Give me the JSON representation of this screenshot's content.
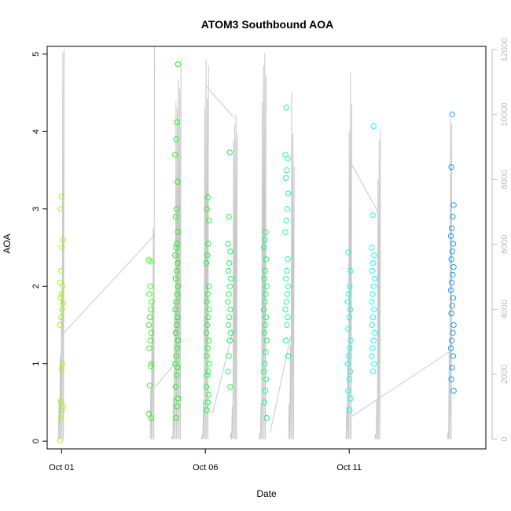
{
  "chart_data": {
    "type": "scatter",
    "title": "ATOM3 Southbound AOA",
    "xlabel": "Date",
    "ylabel": "AOA",
    "x_axis": {
      "type": "date",
      "range": [
        "2024-09-30T12:00",
        "2024-10-15T18:00"
      ],
      "ticks": [
        "2024-10-01",
        "2024-10-06",
        "2024-10-11"
      ],
      "tick_labels": [
        "Oct 01",
        "Oct 06",
        "Oct 11"
      ]
    },
    "y_axis": {
      "range": [
        -0.1,
        5.1
      ],
      "ticks": [
        0,
        1,
        2,
        3,
        4,
        5
      ]
    },
    "y2_axis": {
      "range": [
        -300,
        12100
      ],
      "ticks": [
        0,
        2000,
        4000,
        6000,
        8000,
        10000,
        12000
      ],
      "color": "#bdbdbd"
    },
    "grid": false,
    "series": [
      {
        "kind": "points",
        "marker": "open-circle",
        "color_scale": "rainbow green→blue by date",
        "points": [
          [
            "2024-10-01T00:00",
            0.01
          ],
          [
            "2024-10-01T00:00",
            0.3
          ],
          [
            "2024-10-01T00:00",
            0.4
          ],
          [
            "2024-10-01T00:00",
            0.45
          ],
          [
            "2024-10-01T00:00",
            0.52
          ],
          [
            "2024-10-01T00:00",
            0.93
          ],
          [
            "2024-10-01T00:00",
            1.0
          ],
          [
            "2024-10-01T00:00",
            1.5
          ],
          [
            "2024-10-01T00:00",
            1.6
          ],
          [
            "2024-10-01T00:00",
            1.7
          ],
          [
            "2024-10-01T00:00",
            1.78
          ],
          [
            "2024-10-01T00:00",
            1.85
          ],
          [
            "2024-10-01T00:00",
            1.9
          ],
          [
            "2024-10-01T00:00",
            2.0
          ],
          [
            "2024-10-01T00:00",
            2.05
          ],
          [
            "2024-10-01T00:00",
            2.2
          ],
          [
            "2024-10-01T00:00",
            2.5
          ],
          [
            "2024-10-01T00:00",
            2.6
          ],
          [
            "2024-10-01T00:00",
            3.0
          ],
          [
            "2024-10-01T00:00",
            3.16
          ],
          [
            "2024-10-04T02:00",
            0.3
          ],
          [
            "2024-10-04T02:00",
            0.35
          ],
          [
            "2024-10-04T02:00",
            0.72
          ],
          [
            "2024-10-04T02:00",
            0.97
          ],
          [
            "2024-10-04T02:00",
            1.0
          ],
          [
            "2024-10-04T02:00",
            1.2
          ],
          [
            "2024-10-04T02:00",
            1.3
          ],
          [
            "2024-10-04T02:00",
            1.4
          ],
          [
            "2024-10-04T02:00",
            1.5
          ],
          [
            "2024-10-04T02:00",
            1.6
          ],
          [
            "2024-10-04T02:00",
            1.7
          ],
          [
            "2024-10-04T02:00",
            1.8
          ],
          [
            "2024-10-04T02:00",
            1.9
          ],
          [
            "2024-10-04T02:00",
            2.0
          ],
          [
            "2024-10-04T02:00",
            2.32
          ],
          [
            "2024-10-04T02:00",
            2.34
          ],
          [
            "2024-10-05T00:00",
            0.3
          ],
          [
            "2024-10-05T00:00",
            0.45
          ],
          [
            "2024-10-05T00:00",
            0.55
          ],
          [
            "2024-10-05T00:00",
            0.7
          ],
          [
            "2024-10-05T00:00",
            0.85
          ],
          [
            "2024-10-05T00:00",
            0.95
          ],
          [
            "2024-10-05T00:00",
            1.0
          ],
          [
            "2024-10-05T00:00",
            1.1
          ],
          [
            "2024-10-05T00:00",
            1.2
          ],
          [
            "2024-10-05T00:00",
            1.3
          ],
          [
            "2024-10-05T00:00",
            1.4
          ],
          [
            "2024-10-05T00:00",
            1.5
          ],
          [
            "2024-10-05T00:00",
            1.6
          ],
          [
            "2024-10-05T00:00",
            1.7
          ],
          [
            "2024-10-05T00:00",
            1.8
          ],
          [
            "2024-10-05T00:00",
            1.9
          ],
          [
            "2024-10-05T00:00",
            2.0
          ],
          [
            "2024-10-05T00:00",
            2.1
          ],
          [
            "2024-10-05T00:00",
            2.2
          ],
          [
            "2024-10-05T00:00",
            2.3
          ],
          [
            "2024-10-05T00:00",
            2.4
          ],
          [
            "2024-10-05T00:00",
            2.5
          ],
          [
            "2024-10-05T00:00",
            2.55
          ],
          [
            "2024-10-05T00:00",
            2.7
          ],
          [
            "2024-10-05T00:00",
            2.9
          ],
          [
            "2024-10-05T00:00",
            3.0
          ],
          [
            "2024-10-05T00:00",
            3.35
          ],
          [
            "2024-10-05T00:00",
            3.7
          ],
          [
            "2024-10-05T00:00",
            3.9
          ],
          [
            "2024-10-05T00:00",
            4.12
          ],
          [
            "2024-10-05T00:00",
            4.87
          ],
          [
            "2024-10-06T02:00",
            0.4
          ],
          [
            "2024-10-06T02:00",
            0.5
          ],
          [
            "2024-10-06T02:00",
            0.6
          ],
          [
            "2024-10-06T02:00",
            0.7
          ],
          [
            "2024-10-06T02:00",
            0.85
          ],
          [
            "2024-10-06T02:00",
            0.9
          ],
          [
            "2024-10-06T02:00",
            1.0
          ],
          [
            "2024-10-06T02:00",
            1.1
          ],
          [
            "2024-10-06T02:00",
            1.2
          ],
          [
            "2024-10-06T02:00",
            1.3
          ],
          [
            "2024-10-06T02:00",
            1.4
          ],
          [
            "2024-10-06T02:00",
            1.5
          ],
          [
            "2024-10-06T02:00",
            1.6
          ],
          [
            "2024-10-06T02:00",
            1.7
          ],
          [
            "2024-10-06T02:00",
            1.8
          ],
          [
            "2024-10-06T02:00",
            1.9
          ],
          [
            "2024-10-06T02:00",
            2.0
          ],
          [
            "2024-10-06T02:00",
            2.3
          ],
          [
            "2024-10-06T02:00",
            2.4
          ],
          [
            "2024-10-06T02:00",
            2.55
          ],
          [
            "2024-10-06T02:00",
            2.85
          ],
          [
            "2024-10-06T02:00",
            3.0
          ],
          [
            "2024-10-06T02:00",
            3.15
          ],
          [
            "2024-10-06T20:00",
            0.7
          ],
          [
            "2024-10-06T20:00",
            0.9
          ],
          [
            "2024-10-06T20:00",
            1.1
          ],
          [
            "2024-10-06T20:00",
            1.3
          ],
          [
            "2024-10-06T20:00",
            1.4
          ],
          [
            "2024-10-06T20:00",
            1.5
          ],
          [
            "2024-10-06T20:00",
            1.6
          ],
          [
            "2024-10-06T20:00",
            1.7
          ],
          [
            "2024-10-06T20:00",
            1.8
          ],
          [
            "2024-10-06T20:00",
            1.9
          ],
          [
            "2024-10-06T20:00",
            2.0
          ],
          [
            "2024-10-06T20:00",
            2.1
          ],
          [
            "2024-10-06T20:00",
            2.2
          ],
          [
            "2024-10-06T20:00",
            2.3
          ],
          [
            "2024-10-06T20:00",
            2.45
          ],
          [
            "2024-10-06T20:00",
            2.55
          ],
          [
            "2024-10-06T20:00",
            2.9
          ],
          [
            "2024-10-06T20:00",
            3.73
          ],
          [
            "2024-10-08T02:00",
            0.3
          ],
          [
            "2024-10-08T02:00",
            0.5
          ],
          [
            "2024-10-08T02:00",
            0.65
          ],
          [
            "2024-10-08T02:00",
            0.8
          ],
          [
            "2024-10-08T02:00",
            0.9
          ],
          [
            "2024-10-08T02:00",
            1.0
          ],
          [
            "2024-10-08T02:00",
            1.15
          ],
          [
            "2024-10-08T02:00",
            1.3
          ],
          [
            "2024-10-08T02:00",
            1.4
          ],
          [
            "2024-10-08T02:00",
            1.5
          ],
          [
            "2024-10-08T02:00",
            1.6
          ],
          [
            "2024-10-08T02:00",
            1.7
          ],
          [
            "2024-10-08T02:00",
            1.8
          ],
          [
            "2024-10-08T02:00",
            1.9
          ],
          [
            "2024-10-08T02:00",
            2.0
          ],
          [
            "2024-10-08T02:00",
            2.1
          ],
          [
            "2024-10-08T02:00",
            2.2
          ],
          [
            "2024-10-08T02:00",
            2.35
          ],
          [
            "2024-10-08T02:00",
            2.5
          ],
          [
            "2024-10-08T02:00",
            2.6
          ],
          [
            "2024-10-08T02:00",
            2.7
          ],
          [
            "2024-10-08T20:00",
            1.1
          ],
          [
            "2024-10-08T20:00",
            1.3
          ],
          [
            "2024-10-08T20:00",
            1.5
          ],
          [
            "2024-10-08T20:00",
            1.6
          ],
          [
            "2024-10-08T20:00",
            1.7
          ],
          [
            "2024-10-08T20:00",
            1.8
          ],
          [
            "2024-10-08T20:00",
            1.9
          ],
          [
            "2024-10-08T20:00",
            2.0
          ],
          [
            "2024-10-08T20:00",
            2.1
          ],
          [
            "2024-10-08T20:00",
            2.2
          ],
          [
            "2024-10-08T20:00",
            2.35
          ],
          [
            "2024-10-08T20:00",
            2.7
          ],
          [
            "2024-10-08T20:00",
            2.85
          ],
          [
            "2024-10-08T20:00",
            3.0
          ],
          [
            "2024-10-08T20:00",
            3.2
          ],
          [
            "2024-10-08T20:00",
            3.4
          ],
          [
            "2024-10-08T20:00",
            3.5
          ],
          [
            "2024-10-08T20:00",
            3.65
          ],
          [
            "2024-10-08T20:00",
            3.7
          ],
          [
            "2024-10-08T20:00",
            4.31
          ],
          [
            "2024-10-11T00:00",
            0.4
          ],
          [
            "2024-10-11T00:00",
            0.55
          ],
          [
            "2024-10-11T00:00",
            0.65
          ],
          [
            "2024-10-11T00:00",
            0.8
          ],
          [
            "2024-10-11T00:00",
            0.9
          ],
          [
            "2024-10-11T00:00",
            1.0
          ],
          [
            "2024-10-11T00:00",
            1.1
          ],
          [
            "2024-10-11T00:00",
            1.2
          ],
          [
            "2024-10-11T00:00",
            1.3
          ],
          [
            "2024-10-11T00:00",
            1.45
          ],
          [
            "2024-10-11T00:00",
            1.6
          ],
          [
            "2024-10-11T00:00",
            1.7
          ],
          [
            "2024-10-11T00:00",
            1.8
          ],
          [
            "2024-10-11T00:00",
            1.9
          ],
          [
            "2024-10-11T00:00",
            2.0
          ],
          [
            "2024-10-11T00:00",
            2.2
          ],
          [
            "2024-10-11T00:00",
            2.44
          ],
          [
            "2024-10-11T20:00",
            0.9
          ],
          [
            "2024-10-11T20:00",
            1.0
          ],
          [
            "2024-10-11T20:00",
            1.1
          ],
          [
            "2024-10-11T20:00",
            1.2
          ],
          [
            "2024-10-11T20:00",
            1.3
          ],
          [
            "2024-10-11T20:00",
            1.4
          ],
          [
            "2024-10-11T20:00",
            1.5
          ],
          [
            "2024-10-11T20:00",
            1.6
          ],
          [
            "2024-10-11T20:00",
            1.7
          ],
          [
            "2024-10-11T20:00",
            1.8
          ],
          [
            "2024-10-11T20:00",
            1.9
          ],
          [
            "2024-10-11T20:00",
            2.0
          ],
          [
            "2024-10-11T20:00",
            2.1
          ],
          [
            "2024-10-11T20:00",
            2.2
          ],
          [
            "2024-10-11T20:00",
            2.3
          ],
          [
            "2024-10-11T20:00",
            2.4
          ],
          [
            "2024-10-11T20:00",
            2.5
          ],
          [
            "2024-10-11T20:00",
            2.92
          ],
          [
            "2024-10-11T20:00",
            4.07
          ],
          [
            "2024-10-14T14:00",
            0.65
          ],
          [
            "2024-10-14T14:00",
            0.8
          ],
          [
            "2024-10-14T14:00",
            0.95
          ],
          [
            "2024-10-14T14:00",
            1.1
          ],
          [
            "2024-10-14T14:00",
            1.2
          ],
          [
            "2024-10-14T14:00",
            1.3
          ],
          [
            "2024-10-14T14:00",
            1.4
          ],
          [
            "2024-10-14T14:00",
            1.5
          ],
          [
            "2024-10-14T14:00",
            1.65
          ],
          [
            "2024-10-14T14:00",
            1.75
          ],
          [
            "2024-10-14T14:00",
            1.85
          ],
          [
            "2024-10-14T14:00",
            1.95
          ],
          [
            "2024-10-14T14:00",
            2.05
          ],
          [
            "2024-10-14T14:00",
            2.15
          ],
          [
            "2024-10-14T14:00",
            2.25
          ],
          [
            "2024-10-14T14:00",
            2.35
          ],
          [
            "2024-10-14T14:00",
            2.45
          ],
          [
            "2024-10-14T14:00",
            2.55
          ],
          [
            "2024-10-14T14:00",
            2.65
          ],
          [
            "2024-10-14T14:00",
            2.75
          ],
          [
            "2024-10-14T14:00",
            2.9
          ],
          [
            "2024-10-14T14:00",
            3.05
          ],
          [
            "2024-10-14T14:00",
            3.54
          ],
          [
            "2024-10-14T14:00",
            4.22
          ]
        ]
      },
      {
        "kind": "line",
        "axis": "y2",
        "color": "#c8c8c8",
        "bursts": [
          [
            "2024-10-01T00:00",
            [
              1200,
              2600,
              4600,
              11900,
              12000
            ]
          ],
          [
            "2024-10-04T04:00",
            [
              1600,
              4200,
              6500,
              12100
            ]
          ],
          [
            "2024-10-05T00:00",
            [
              100,
              1300,
              4300,
              10400,
              10200,
              11100,
              10800,
              11700
            ]
          ],
          [
            "2024-10-06T00:00",
            [
              150,
              1200,
              10200,
              11700,
              10500,
              11500
            ]
          ],
          [
            "2024-10-07T00:00",
            [
              200,
              1000,
              9200,
              9700,
              10000,
              9400
            ]
          ],
          [
            "2024-10-08T00:00",
            [
              200,
              1100,
              10400,
              11500,
              11900,
              11200
            ]
          ],
          [
            "2024-10-09T00:00",
            [
              1100,
              2900,
              10700,
              9400,
              8400
            ]
          ],
          [
            "2024-10-11T00:00",
            [
              1000,
              2700,
              9500,
              11300,
              10300
            ]
          ],
          [
            "2024-10-12T00:00",
            [
              150,
              1200,
              8000,
              9200,
              9500
            ]
          ],
          [
            "2024-10-14T12:00",
            [
              200,
              2700,
              9900,
              9700
            ]
          ]
        ],
        "connectors": [
          [
            "2024-10-01T00:00",
            3200,
            "2024-10-04T06:00",
            6300
          ],
          [
            "2024-10-04T06:00",
            1600,
            "2024-10-05T00:00",
            2400
          ],
          [
            "2024-10-06T00:00",
            10900,
            "2024-10-07T00:00",
            9900
          ],
          [
            "2024-10-06T06:00",
            800,
            "2024-10-07T00:00",
            3500
          ],
          [
            "2024-10-08T06:00",
            200,
            "2024-10-09T00:00",
            3300
          ],
          [
            "2024-10-11T00:00",
            8600,
            "2024-10-12T00:00",
            7000
          ],
          [
            "2024-10-11T02:00",
            700,
            "2024-10-14T12:00",
            2700
          ]
        ]
      }
    ],
    "y2_ticks": [
      "0",
      "2000",
      "4000",
      "6000",
      "8000",
      "10000",
      "12000"
    ]
  }
}
